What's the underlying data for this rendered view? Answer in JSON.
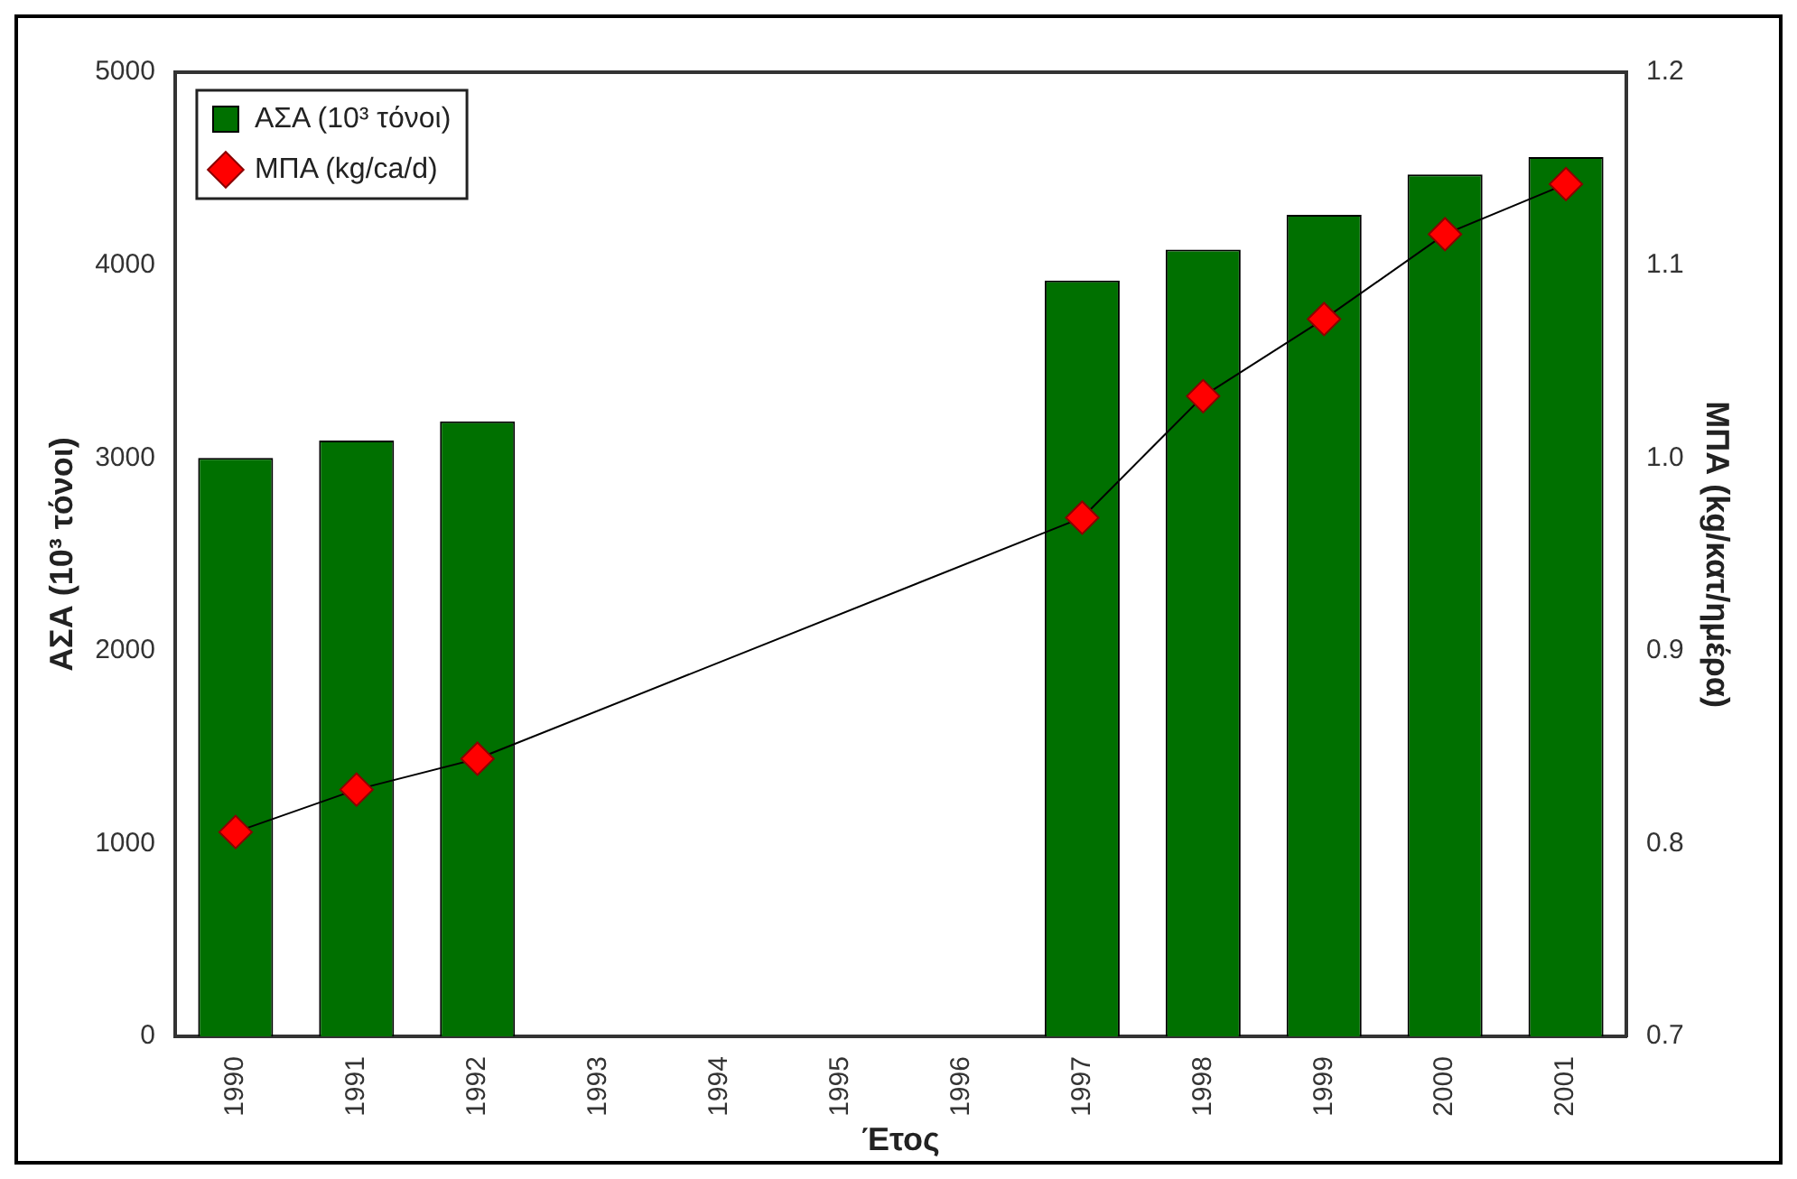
{
  "chart_data": {
    "type": "bar",
    "xlabel": "Έτος",
    "ylabel": "ΑΣΑ (10³ τόνοι)",
    "y2label": "ΜΠΑ (kg/κατ/ημέρα)",
    "categories": [
      "1990",
      "1991",
      "1992",
      "1993",
      "1994",
      "1995",
      "1996",
      "1997",
      "1998",
      "1999",
      "2000",
      "2001"
    ],
    "series": [
      {
        "name": "ΑΣΑ (10³ τόνοι)",
        "color": "#007000",
        "values": [
          3000,
          3090,
          3190,
          null,
          null,
          null,
          null,
          3920,
          4080,
          4260,
          4470,
          4560
        ]
      },
      {
        "name": "ΜΠΑ (kg/ca/d)",
        "type": "line",
        "axis": "y2",
        "color": "#ff0000",
        "marker": "diamond",
        "values": [
          0.806,
          0.828,
          0.844,
          null,
          null,
          null,
          null,
          0.969,
          1.032,
          1.072,
          1.116,
          1.142
        ]
      }
    ],
    "ylim": [
      0,
      5000
    ],
    "yticks": [
      0,
      1000,
      2000,
      3000,
      4000,
      5000
    ],
    "y2lim": [
      0.7,
      1.2
    ],
    "y2ticks": [
      0.7,
      0.8,
      0.9,
      {
        "value": 1.0,
        "label": "1.0"
      },
      1.1,
      1.2
    ],
    "grid": false,
    "legend": "top left"
  }
}
